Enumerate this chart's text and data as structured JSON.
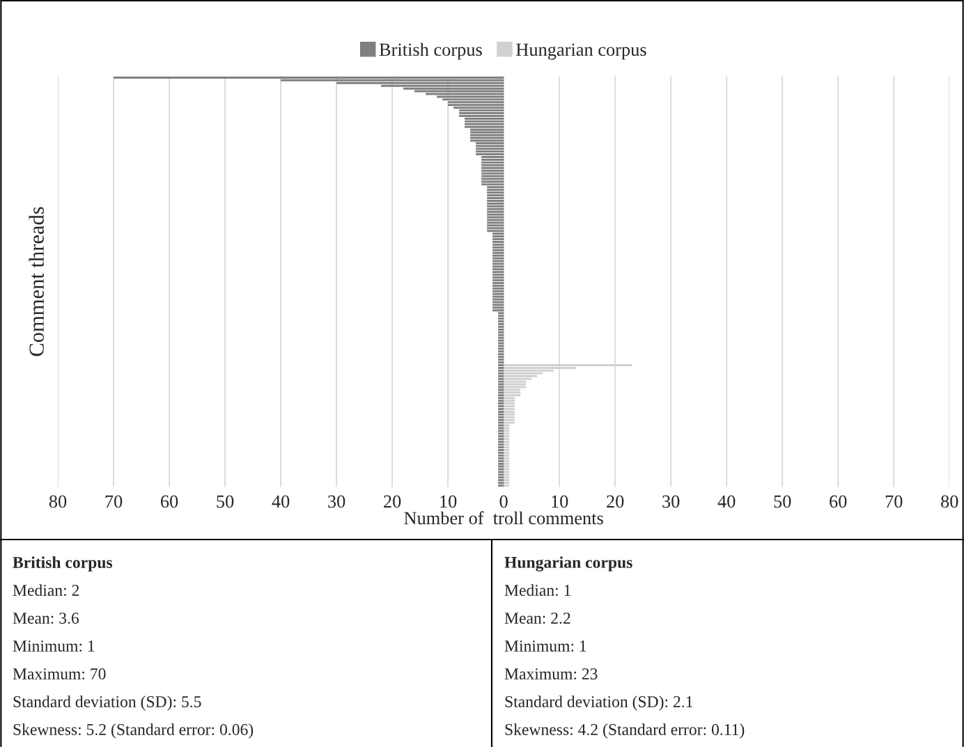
{
  "chart_data": {
    "type": "bar",
    "orientation": "horizontal",
    "xlabel": "Number of  troll comments",
    "ylabel": "Comment threads",
    "categories": [
      null,
      null,
      null,
      null,
      null,
      null,
      null,
      null,
      null,
      null,
      null,
      null,
      null,
      null,
      null,
      null,
      null,
      null,
      null,
      null,
      null,
      null,
      null,
      null,
      null,
      null,
      null,
      null,
      null,
      null,
      null,
      null,
      null,
      null,
      null,
      null,
      null,
      null,
      null,
      null,
      null,
      null,
      null,
      null,
      null,
      null,
      null,
      null,
      null,
      null,
      null,
      null,
      null,
      null,
      null,
      null,
      null,
      null,
      null,
      null,
      null,
      null,
      null,
      null,
      null,
      null,
      null,
      null,
      null,
      null,
      null,
      null,
      null,
      null,
      null,
      null,
      null,
      null,
      null,
      null,
      null,
      null,
      null,
      null,
      null,
      null,
      null,
      null,
      null,
      null,
      null,
      null,
      null,
      null,
      null,
      null,
      null,
      null,
      null,
      null,
      null,
      null,
      null,
      null,
      null,
      null,
      null,
      null,
      null,
      null,
      null,
      null,
      null,
      null,
      null,
      null,
      null,
      null,
      null,
      null,
      null,
      null,
      null,
      null,
      null,
      null,
      null,
      null,
      null,
      null,
      null,
      null,
      null,
      null,
      null,
      null,
      null,
      null,
      null,
      null,
      null,
      null,
      null,
      null,
      null,
      null,
      null,
      null,
      null,
      null
    ],
    "series": [
      {
        "name": "British corpus",
        "color": "#7f7f7f",
        "values": [
          -70,
          -40,
          -30,
          -22,
          -18,
          -16,
          -14,
          -12,
          -11,
          -10,
          -10,
          -9,
          -8,
          -8,
          -8,
          -7,
          -7,
          -7,
          -7,
          -6,
          -6,
          -6,
          -6,
          -6,
          -5,
          -5,
          -5,
          -5,
          -5,
          -4,
          -4,
          -4,
          -4,
          -4,
          -4,
          -4,
          -4,
          -4,
          -4,
          -4,
          -3,
          -3,
          -3,
          -3,
          -3,
          -3,
          -3,
          -3,
          -3,
          -3,
          -3,
          -3,
          -3,
          -3,
          -3,
          -3,
          -3,
          -2,
          -2,
          -2,
          -2,
          -2,
          -2,
          -2,
          -2,
          -2,
          -2,
          -2,
          -2,
          -2,
          -2,
          -2,
          -2,
          -2,
          -2,
          -2,
          -2,
          -2,
          -2,
          -2,
          -2,
          -2,
          -2,
          -2,
          -2,
          -2,
          -1,
          -1,
          -1,
          -1,
          -1,
          -1,
          -1,
          -1,
          -1,
          -1,
          -1,
          -1,
          -1,
          -1,
          -1,
          -1,
          -1,
          -1,
          -1,
          -1,
          -1,
          -1,
          -1,
          -1,
          -1,
          -1,
          -1,
          -1,
          -1,
          -1,
          -1,
          -1,
          -1,
          -1,
          -1,
          -1,
          -1,
          -1,
          -1,
          -1,
          -1,
          -1,
          -1,
          -1,
          -1,
          -1,
          -1,
          -1,
          -1,
          -1,
          -1,
          -1,
          -1,
          -1,
          -1,
          -1,
          -1,
          -1,
          -1,
          -1,
          -1,
          -1,
          -1,
          -1
        ]
      },
      {
        "name": "Hungarian corpus",
        "color": "#d0d0d0",
        "values": [
          null,
          null,
          null,
          null,
          null,
          null,
          null,
          null,
          null,
          null,
          null,
          null,
          null,
          null,
          null,
          null,
          null,
          null,
          null,
          null,
          null,
          null,
          null,
          null,
          null,
          null,
          null,
          null,
          null,
          null,
          null,
          null,
          null,
          null,
          null,
          null,
          null,
          null,
          null,
          null,
          null,
          null,
          null,
          null,
          null,
          null,
          null,
          null,
          null,
          null,
          null,
          null,
          null,
          null,
          null,
          null,
          null,
          null,
          null,
          null,
          null,
          null,
          null,
          null,
          null,
          null,
          null,
          null,
          null,
          null,
          null,
          null,
          null,
          null,
          null,
          null,
          null,
          null,
          null,
          null,
          null,
          null,
          null,
          null,
          null,
          null,
          null,
          null,
          null,
          null,
          null,
          null,
          null,
          null,
          null,
          null,
          null,
          null,
          null,
          null,
          null,
          null,
          null,
          null,
          null,
          23,
          13,
          9,
          7,
          6,
          5,
          4,
          4,
          4,
          3,
          3,
          3,
          2,
          2,
          2,
          2,
          2,
          2,
          2,
          2,
          2,
          2,
          1,
          1,
          1,
          1,
          1,
          1,
          1,
          1,
          1,
          1,
          1,
          1,
          1,
          1,
          1,
          1,
          1,
          1,
          1,
          1,
          1,
          1,
          1
        ]
      }
    ],
    "xlim": [
      -80,
      80
    ],
    "xticks": [
      {
        "value": -80,
        "label": "80"
      },
      {
        "value": -70,
        "label": "70"
      },
      {
        "value": -60,
        "label": "60"
      },
      {
        "value": -50,
        "label": "50"
      },
      {
        "value": -40,
        "label": "40"
      },
      {
        "value": -30,
        "label": "30"
      },
      {
        "value": -20,
        "label": "20"
      },
      {
        "value": -10,
        "label": "10"
      },
      0,
      10,
      20,
      30,
      40,
      50,
      60,
      70,
      80
    ],
    "grid": "x",
    "legend": "top",
    "tick_labels": "x",
    "annotations": [
      "British corpus",
      "Median: 2",
      "Mean: 3.6",
      "Minimum: 1",
      "Maximum: 70",
      "Standard deviation (SD): 5.5",
      "Skewness: 5.2 (Standard error: 0.06)",
      "Hungarian corpus",
      "Median: 1",
      "Mean: 2.2",
      "Minimum: 1",
      "Maximum: 23",
      "Standard deviation (SD): 2.1",
      "Skewness: 4.2 (Standard error: 0.11)"
    ]
  }
}
